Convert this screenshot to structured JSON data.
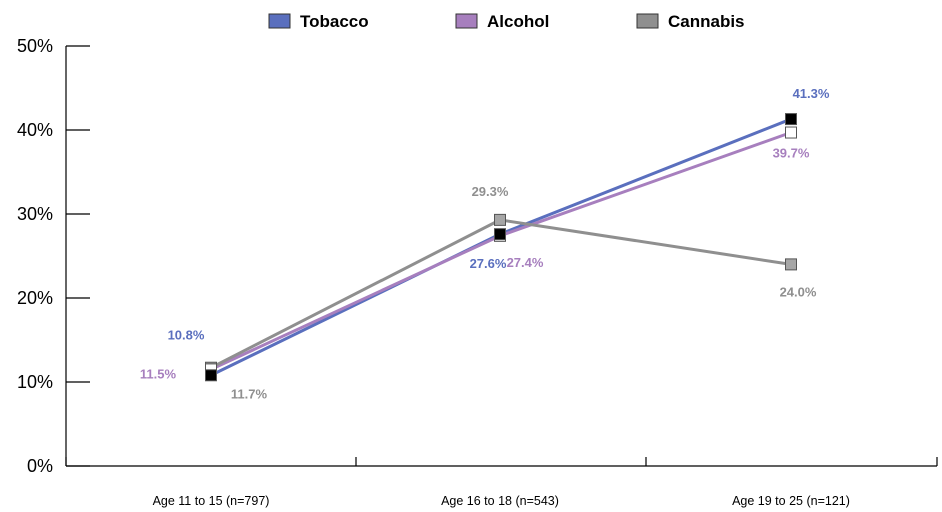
{
  "chart_data": {
    "type": "line",
    "title": "",
    "xlabel": "",
    "ylabel": "",
    "categories": [
      "Age 11 to 15 (n=797)",
      "Age 16 to 18 (n=543)",
      "Age 19 to 25 (n=121)"
    ],
    "ylim": [
      0,
      50
    ],
    "yticks": [
      "0%",
      "10%",
      "20%",
      "30%",
      "40%",
      "50%"
    ],
    "legend_position": "top",
    "grid": false,
    "series": [
      {
        "name": "Tobacco",
        "color": "#5a6fbe",
        "values": [
          10.8,
          27.6,
          41.3
        ],
        "labels": [
          "10.8%",
          "27.6%",
          "41.3%"
        ],
        "marker_fill": "#000000"
      },
      {
        "name": "Alcohol",
        "color": "#a77fbe",
        "values": [
          11.5,
          27.4,
          39.7
        ],
        "labels": [
          "11.5%",
          "27.4%",
          "39.7%"
        ],
        "marker_fill": "#ffffff"
      },
      {
        "name": "Cannabis",
        "color": "#8f8f8f",
        "values": [
          11.7,
          29.3,
          24.0
        ],
        "labels": [
          "11.7%",
          "29.3%",
          "24.0%"
        ],
        "marker_fill": "#a6a6a6"
      }
    ]
  }
}
